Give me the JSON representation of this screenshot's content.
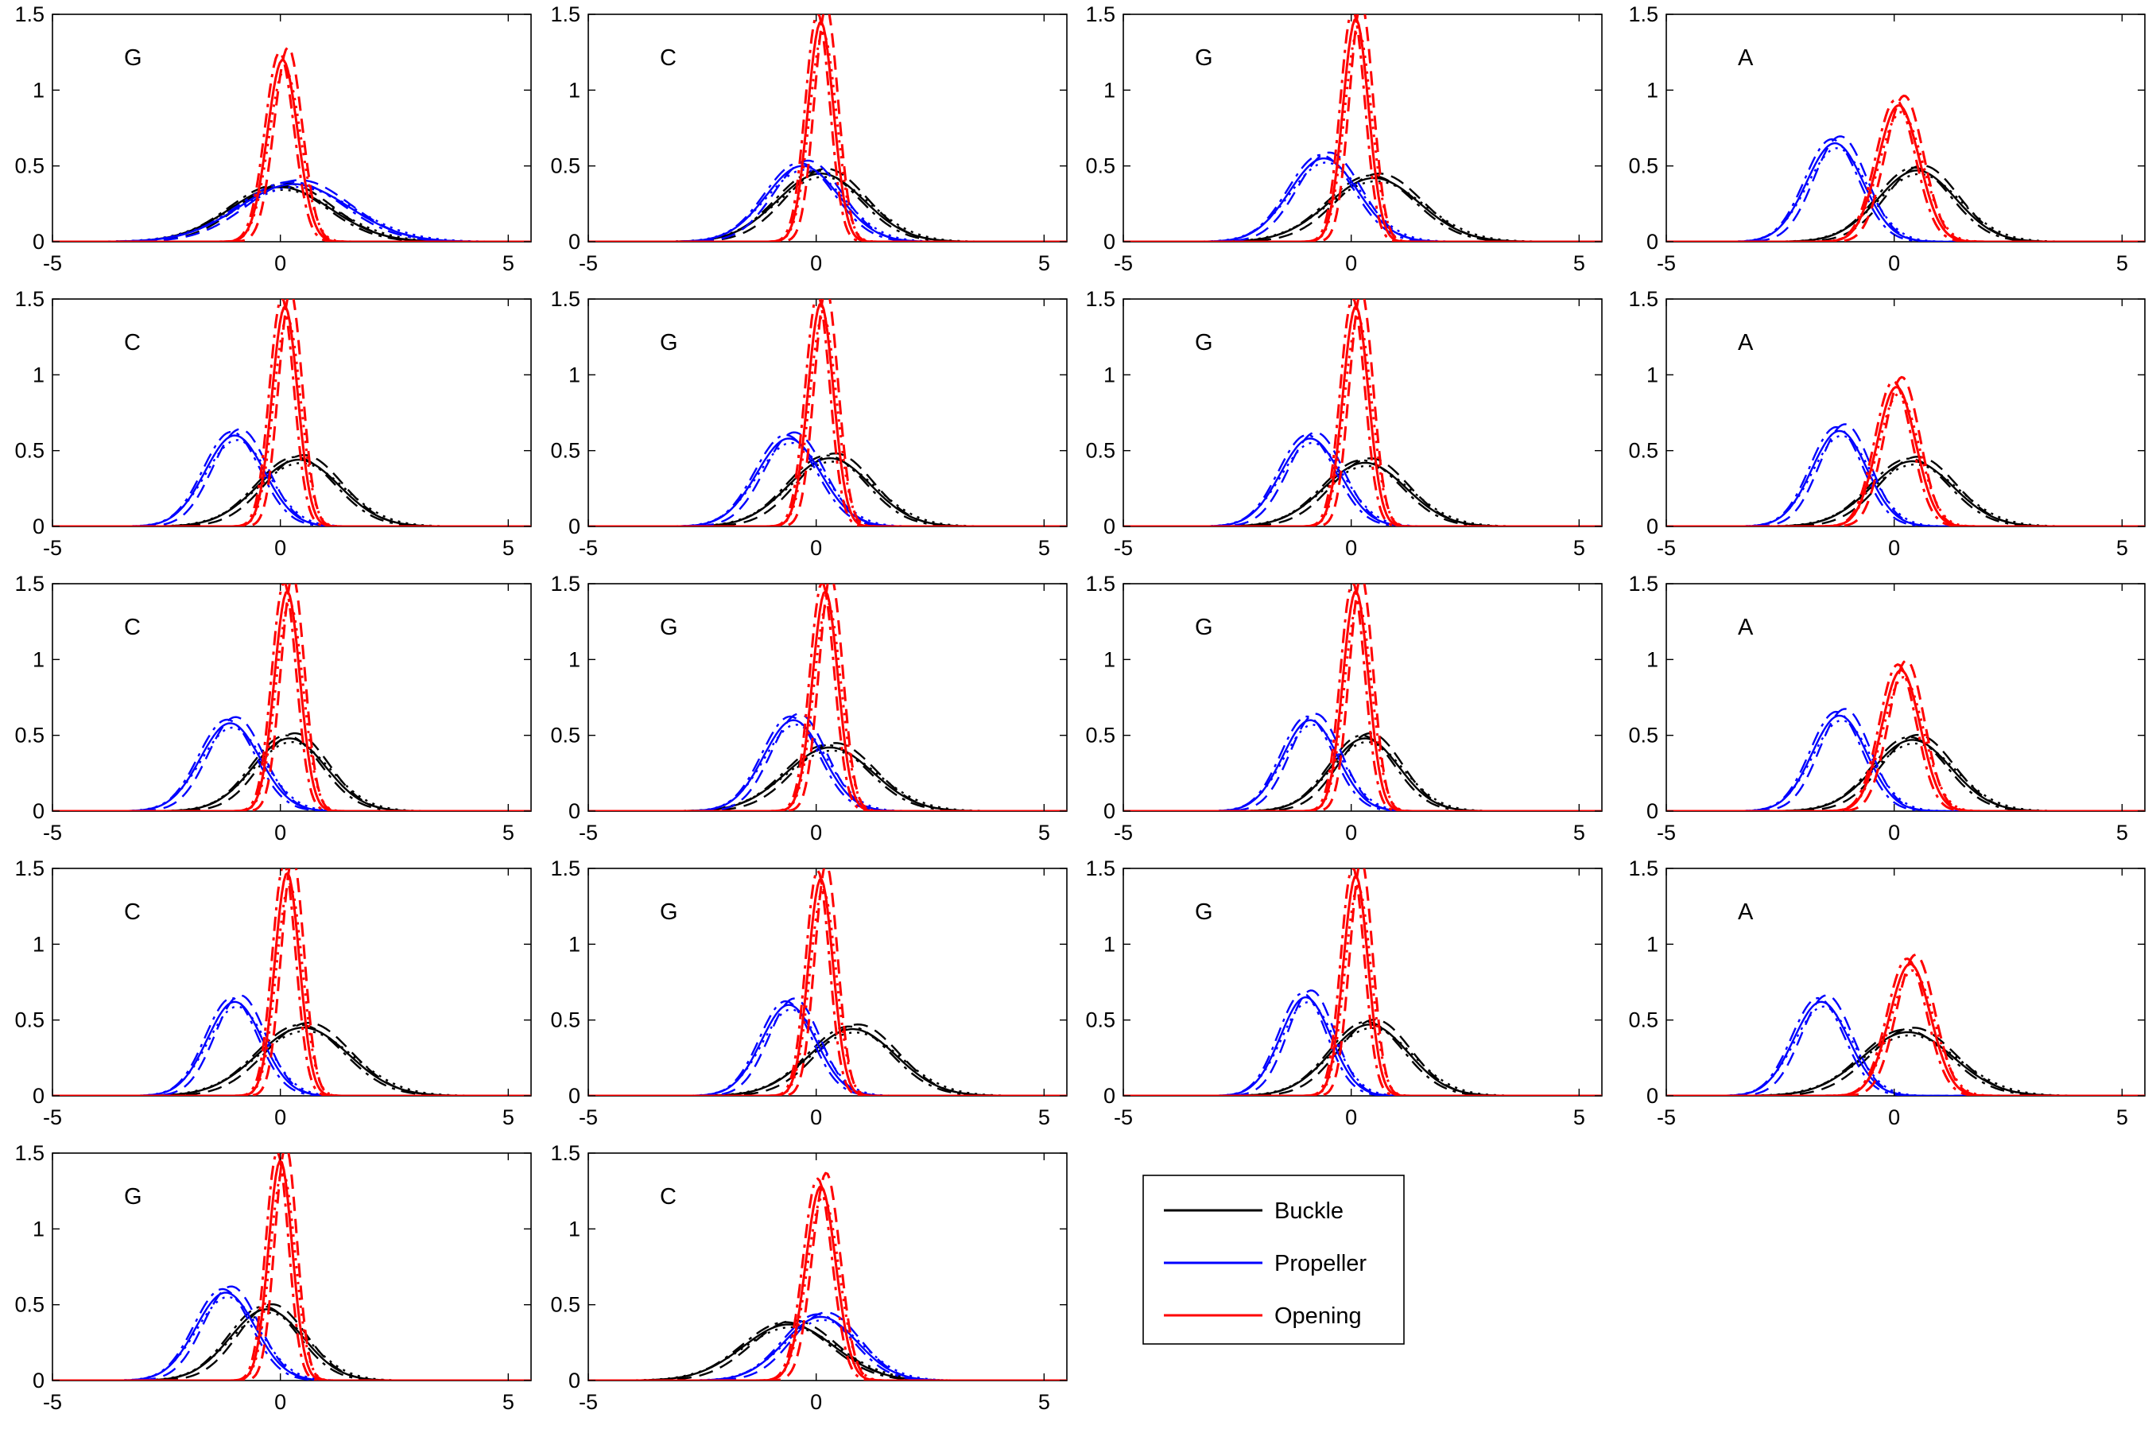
{
  "chart_data": {
    "type": "line",
    "layout": {
      "rows": 5,
      "cols": 4
    },
    "xlim": [
      -5,
      5.5
    ],
    "ylim": [
      0,
      1.5
    ],
    "xticks": [
      -5,
      0,
      5
    ],
    "yticks": [
      0,
      0.5,
      1,
      1.5
    ],
    "ytick_labels": [
      "0",
      "0.5",
      "1",
      "1.5"
    ],
    "grid": false,
    "legend": {
      "placement": "row-5 column-3",
      "entries": [
        {
          "name": "Buckle",
          "color": "#000000"
        },
        {
          "name": "Propeller",
          "color": "#0000ff"
        },
        {
          "name": "Opening",
          "color": "#ff0000"
        }
      ]
    },
    "line_styles": [
      "solid",
      "dashed",
      "dashdot",
      "dotted"
    ],
    "panels": [
      {
        "label": "G",
        "buckle": {
          "mu": 0.0,
          "sd": 1.1,
          "peak": 0.36
        },
        "propeller": {
          "mu": 0.3,
          "sd": 1.2,
          "peak": 0.38
        },
        "opening": {
          "mu": 0.05,
          "sd": 0.33,
          "peak": 1.2
        }
      },
      {
        "label": "C",
        "buckle": {
          "mu": 0.1,
          "sd": 0.95,
          "peak": 0.45
        },
        "propeller": {
          "mu": -0.3,
          "sd": 0.8,
          "peak": 0.5
        },
        "opening": {
          "mu": 0.1,
          "sd": 0.28,
          "peak": 1.45
        }
      },
      {
        "label": "G",
        "buckle": {
          "mu": 0.5,
          "sd": 1.0,
          "peak": 0.42
        },
        "propeller": {
          "mu": -0.6,
          "sd": 0.75,
          "peak": 0.55
        },
        "opening": {
          "mu": 0.1,
          "sd": 0.28,
          "peak": 1.47
        }
      },
      {
        "label": "A",
        "buckle": {
          "mu": 0.5,
          "sd": 0.85,
          "peak": 0.47
        },
        "propeller": {
          "mu": -1.3,
          "sd": 0.62,
          "peak": 0.65
        },
        "opening": {
          "mu": 0.1,
          "sd": 0.45,
          "peak": 0.9
        }
      },
      {
        "label": "C",
        "buckle": {
          "mu": 0.4,
          "sd": 0.9,
          "peak": 0.44
        },
        "propeller": {
          "mu": -1.0,
          "sd": 0.65,
          "peak": 0.6
        },
        "opening": {
          "mu": 0.1,
          "sd": 0.28,
          "peak": 1.45
        }
      },
      {
        "label": "G",
        "buckle": {
          "mu": 0.3,
          "sd": 0.9,
          "peak": 0.45
        },
        "propeller": {
          "mu": -0.6,
          "sd": 0.7,
          "peak": 0.58
        },
        "opening": {
          "mu": 0.1,
          "sd": 0.28,
          "peak": 1.47
        }
      },
      {
        "label": "G",
        "buckle": {
          "mu": 0.3,
          "sd": 0.9,
          "peak": 0.42
        },
        "propeller": {
          "mu": -0.9,
          "sd": 0.65,
          "peak": 0.58
        },
        "opening": {
          "mu": 0.1,
          "sd": 0.28,
          "peak": 1.45
        }
      },
      {
        "label": "A",
        "buckle": {
          "mu": 0.4,
          "sd": 0.9,
          "peak": 0.43
        },
        "propeller": {
          "mu": -1.2,
          "sd": 0.6,
          "peak": 0.63
        },
        "opening": {
          "mu": 0.05,
          "sd": 0.42,
          "peak": 0.92
        }
      },
      {
        "label": "C",
        "buckle": {
          "mu": 0.2,
          "sd": 0.8,
          "peak": 0.48
        },
        "propeller": {
          "mu": -1.1,
          "sd": 0.65,
          "peak": 0.58
        },
        "opening": {
          "mu": 0.15,
          "sd": 0.28,
          "peak": 1.45
        }
      },
      {
        "label": "G",
        "buckle": {
          "mu": 0.3,
          "sd": 0.95,
          "peak": 0.42
        },
        "propeller": {
          "mu": -0.5,
          "sd": 0.65,
          "peak": 0.6
        },
        "opening": {
          "mu": 0.2,
          "sd": 0.28,
          "peak": 1.45
        }
      },
      {
        "label": "G",
        "buckle": {
          "mu": 0.3,
          "sd": 0.75,
          "peak": 0.48
        },
        "propeller": {
          "mu": -0.9,
          "sd": 0.6,
          "peak": 0.6
        },
        "opening": {
          "mu": 0.1,
          "sd": 0.28,
          "peak": 1.45
        }
      },
      {
        "label": "A",
        "buckle": {
          "mu": 0.4,
          "sd": 0.85,
          "peak": 0.47
        },
        "propeller": {
          "mu": -1.2,
          "sd": 0.6,
          "peak": 0.63
        },
        "opening": {
          "mu": 0.15,
          "sd": 0.42,
          "peak": 0.93
        }
      },
      {
        "label": "C",
        "buckle": {
          "mu": 0.5,
          "sd": 1.0,
          "peak": 0.45
        },
        "propeller": {
          "mu": -1.0,
          "sd": 0.6,
          "peak": 0.62
        },
        "opening": {
          "mu": 0.15,
          "sd": 0.27,
          "peak": 1.47
        }
      },
      {
        "label": "G",
        "buckle": {
          "mu": 0.8,
          "sd": 0.95,
          "peak": 0.44
        },
        "propeller": {
          "mu": -0.6,
          "sd": 0.6,
          "peak": 0.6
        },
        "opening": {
          "mu": 0.1,
          "sd": 0.27,
          "peak": 1.43
        }
      },
      {
        "label": "G",
        "buckle": {
          "mu": 0.4,
          "sd": 0.85,
          "peak": 0.47
        },
        "propeller": {
          "mu": -1.0,
          "sd": 0.55,
          "peak": 0.65
        },
        "opening": {
          "mu": 0.1,
          "sd": 0.27,
          "peak": 1.45
        }
      },
      {
        "label": "A",
        "buckle": {
          "mu": 0.3,
          "sd": 1.0,
          "peak": 0.42
        },
        "propeller": {
          "mu": -1.6,
          "sd": 0.6,
          "peak": 0.62
        },
        "opening": {
          "mu": 0.35,
          "sd": 0.45,
          "peak": 0.87
        }
      },
      {
        "label": "G",
        "buckle": {
          "mu": -0.3,
          "sd": 0.8,
          "peak": 0.47
        },
        "propeller": {
          "mu": -1.2,
          "sd": 0.65,
          "peak": 0.58
        },
        "opening": {
          "mu": 0.0,
          "sd": 0.26,
          "peak": 1.45
        }
      },
      {
        "label": "C",
        "buckle": {
          "mu": -0.6,
          "sd": 1.0,
          "peak": 0.37
        },
        "propeller": {
          "mu": 0.1,
          "sd": 0.8,
          "peak": 0.42
        },
        "opening": {
          "mu": 0.1,
          "sd": 0.33,
          "peak": 1.28
        }
      }
    ]
  }
}
